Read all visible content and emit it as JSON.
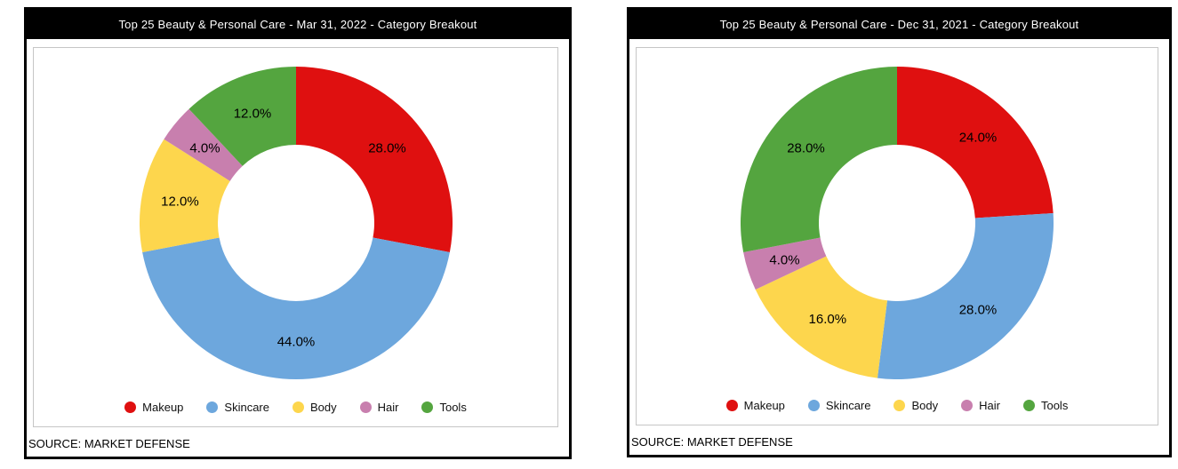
{
  "panels": [
    {
      "title": "Top 25 Beauty & Personal Care - Mar 31, 2022 - Category Breakout",
      "source": "SOURCE: MARKET DEFENSE"
    },
    {
      "title": "Top 25 Beauty & Personal Care - Dec 31, 2021 - Category Breakout",
      "source": "SOURCE: MARKET DEFENSE"
    }
  ],
  "colors": {
    "makeup": "#df1010",
    "skincare": "#6da7dd",
    "body": "#fdd64d",
    "hair": "#c87fae",
    "tools": "#54a53f",
    "titlebar_bg": "#000000",
    "titlebar_text": "#ffffff",
    "frame_border": "#c6c6c6"
  },
  "chart_data": [
    {
      "type": "pie",
      "subtype": "donut",
      "title": "Top 25 Beauty & Personal Care - Mar 31, 2022 - Category Breakout",
      "categories": [
        "Makeup",
        "Skincare",
        "Body",
        "Hair",
        "Tools"
      ],
      "values": [
        28.0,
        44.0,
        12.0,
        4.0,
        12.0
      ],
      "labels": [
        "28.0%",
        "44.0%",
        "12.0%",
        "4.0%",
        "12.0%"
      ],
      "colors": [
        "#df1010",
        "#6da7dd",
        "#fdd64d",
        "#c87fae",
        "#54a53f"
      ],
      "start_angle": 0,
      "direction": "clockwise",
      "hole": 0.5,
      "legend_position": "bottom"
    },
    {
      "type": "pie",
      "subtype": "donut",
      "title": "Top 25 Beauty & Personal Care - Dec 31, 2021 - Category Breakout",
      "categories": [
        "Makeup",
        "Skincare",
        "Body",
        "Hair",
        "Tools"
      ],
      "values": [
        24.0,
        28.0,
        16.0,
        4.0,
        28.0
      ],
      "labels": [
        "24.0%",
        "28.0%",
        "16.0%",
        "4.0%",
        "28.0%"
      ],
      "colors": [
        "#df1010",
        "#6da7dd",
        "#fdd64d",
        "#c87fae",
        "#54a53f"
      ],
      "start_angle": 0,
      "direction": "clockwise",
      "hole": 0.5,
      "legend_position": "bottom"
    }
  ]
}
